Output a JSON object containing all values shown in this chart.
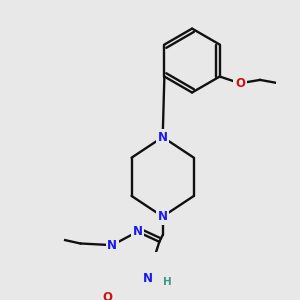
{
  "bg": "#e8e8e8",
  "bc": "#111111",
  "nc": "#1a1aee",
  "oc": "#cc1111",
  "hc": "#3a9a8a",
  "bw": 1.7,
  "dbo": 0.008,
  "fs": 8.0,
  "figsize": [
    3.0,
    3.0
  ],
  "dpi": 100,
  "xlim": [
    0,
    300
  ],
  "ylim": [
    0,
    300
  ]
}
